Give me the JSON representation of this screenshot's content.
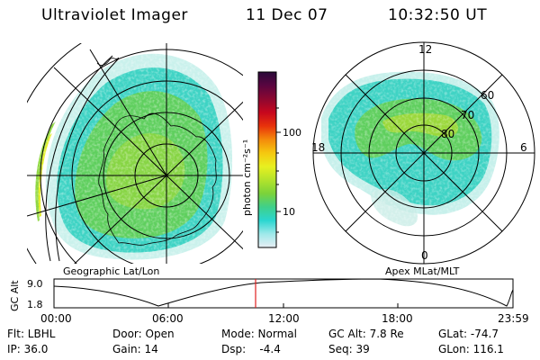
{
  "header": {
    "instrument": "Ultraviolet Imager",
    "date": "11 Dec 07",
    "time": "10:32:50 UT"
  },
  "geo_panel": {
    "label": "Geographic Lat/Lon"
  },
  "apex_panel": {
    "label": "Apex MLat/MLT",
    "mlt_labels": [
      "12",
      "18",
      "6",
      "0"
    ],
    "mlat_labels": [
      "60",
      "70",
      "80"
    ]
  },
  "colorbar": {
    "unit_label": "photon cm⁻²s⁻¹",
    "tick_labels": [
      "100",
      "10"
    ],
    "scale": "log",
    "colors": [
      "#e8eef4",
      "#9fe9ea",
      "#2ad6d0",
      "#3fd08a",
      "#7bd23a",
      "#b3e32c",
      "#e8f020",
      "#f5c80f",
      "#f48a0b",
      "#e8320b",
      "#c7071e",
      "#8d0730",
      "#5a0540",
      "#2a0a3a"
    ]
  },
  "timeline": {
    "axis_label": "GC Alt",
    "y_ticks": [
      "9.0",
      "1.8"
    ],
    "x_ticks": [
      "00:00",
      "06:00",
      "12:00",
      "18:00",
      "23:59"
    ],
    "current_time_color": "#e02020"
  },
  "info": {
    "row1": {
      "flt": "Flt: LBHL",
      "door": "Door: Open",
      "mode": "Mode: Normal",
      "gc_alt": "GC Alt: 7.8 Re",
      "glat": "GLat: -74.7"
    },
    "row2": {
      "ip": "IP: 36.0",
      "gain": "Gain: 14",
      "dsp": "Dsp:    -4.4",
      "seq": "Seq: 39",
      "glon": "GLon: 116.1"
    }
  }
}
